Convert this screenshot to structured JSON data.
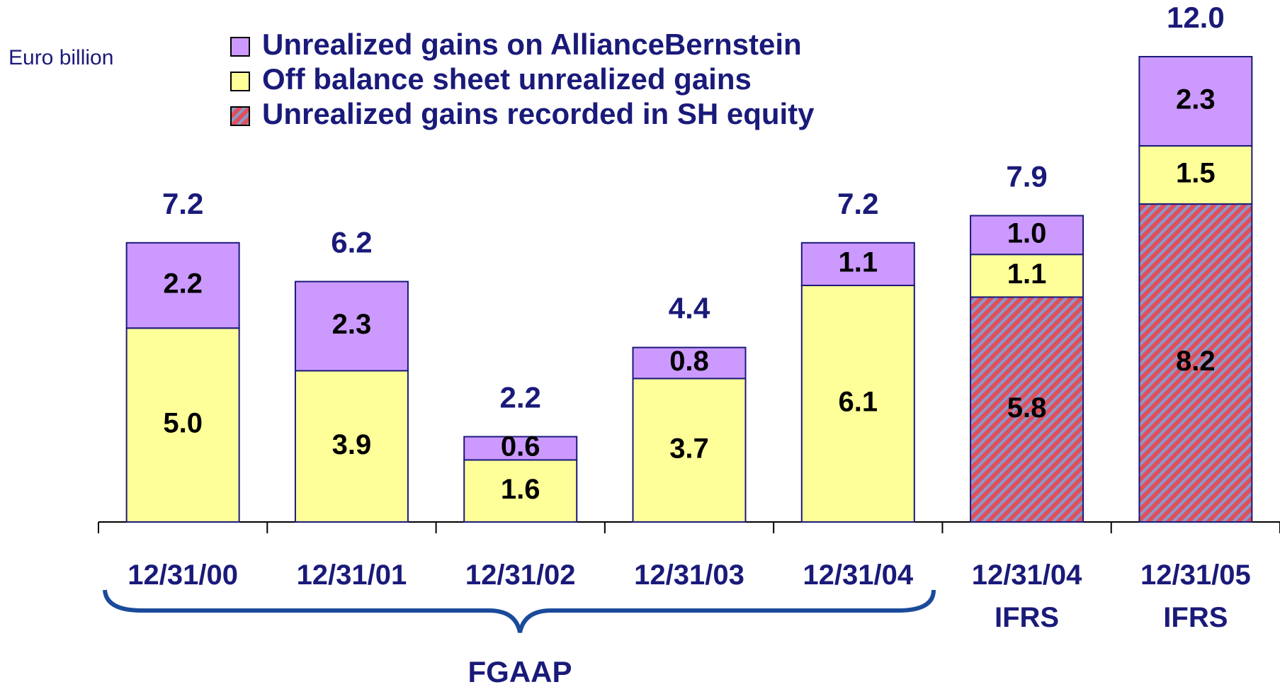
{
  "chart_data": {
    "type": "stacked_bar",
    "unit_label": "Euro billion",
    "categories": [
      "12/31/00",
      "12/31/01",
      "12/31/02",
      "12/31/03",
      "12/31/04",
      "12/31/04\nIFRS",
      "12/31/05\nIFRS"
    ],
    "series": [
      {
        "name": "Unrealized gains recorded in SH equity",
        "color": "#e0505a",
        "hatch_color": "#8c9acc",
        "hatched": true,
        "values": [
          null,
          null,
          null,
          null,
          null,
          5.8,
          8.2
        ],
        "value_labels": [
          null,
          null,
          null,
          null,
          null,
          "5.8",
          "8.2"
        ]
      },
      {
        "name": "Off balance sheet unrealized gains",
        "color": "#ffff99",
        "values": [
          5,
          3.9,
          1.6,
          3.7,
          6.1,
          1.1,
          1.5
        ],
        "value_labels": [
          "5.0",
          "3.9",
          "1.6",
          "3.7",
          "6.1",
          "1.1",
          "1.5"
        ]
      },
      {
        "name": "Unrealized gains on AllianceBernstein",
        "color": "#cc99ff",
        "values": [
          2.2,
          2.3,
          0.6,
          0.8,
          1.1,
          1,
          2.3
        ],
        "value_labels": [
          "2.2",
          "2.3",
          "0.6",
          "0.8",
          "1.1",
          "1.0",
          "2.3"
        ]
      }
    ],
    "totals": [
      7.2,
      6.2,
      2.2,
      4.4,
      7.2,
      7.9,
      12
    ],
    "total_labels": [
      "7.2",
      "6.2",
      "2.2",
      "4.4",
      "7.2",
      "7.9",
      "12.0"
    ],
    "group_label": "FGAAP",
    "ylim": [
      0,
      12
    ]
  }
}
